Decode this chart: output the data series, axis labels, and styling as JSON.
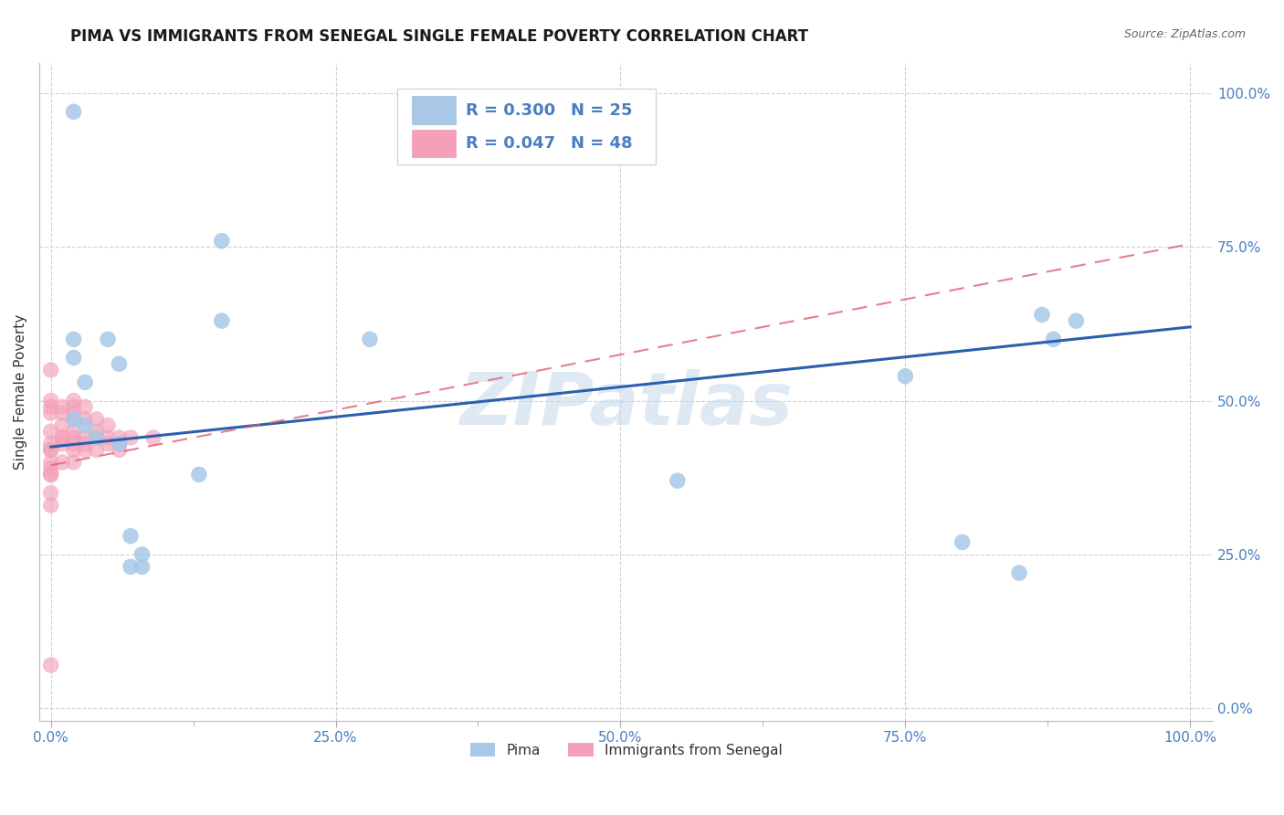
{
  "title": "PIMA VS IMMIGRANTS FROM SENEGAL SINGLE FEMALE POVERTY CORRELATION CHART",
  "source": "Source: ZipAtlas.com",
  "ylabel_label": "Single Female Poverty",
  "x_tick_labels": [
    "0.0%",
    "",
    "25.0%",
    "",
    "50.0%",
    "",
    "75.0%",
    "",
    "100.0%"
  ],
  "y_tick_labels_right": [
    "0.0%",
    "25.0%",
    "50.0%",
    "75.0%",
    "100.0%"
  ],
  "x_ticks": [
    0,
    0.125,
    0.25,
    0.375,
    0.5,
    0.625,
    0.75,
    0.875,
    1.0
  ],
  "y_ticks": [
    0,
    0.25,
    0.5,
    0.75,
    1.0
  ],
  "xlim": [
    -0.01,
    1.02
  ],
  "ylim": [
    -0.02,
    1.05
  ],
  "pima_color": "#a8c8e8",
  "senegal_color": "#f4a0b8",
  "pima_line_color": "#2a5faf",
  "senegal_line_color": "#e06070",
  "background_color": "#ffffff",
  "grid_color": "#cccccc",
  "watermark": "ZIPatlas",
  "title_fontsize": 12,
  "label_fontsize": 11,
  "tick_fontsize": 11,
  "legend_text_color": "#4a7fc1",
  "pima_scatter_x": [
    0.02,
    0.02,
    0.02,
    0.02,
    0.03,
    0.03,
    0.04,
    0.05,
    0.06,
    0.06,
    0.07,
    0.07,
    0.08,
    0.08,
    0.13,
    0.15,
    0.15,
    0.28,
    0.55,
    0.75,
    0.8,
    0.85,
    0.87,
    0.88,
    0.9
  ],
  "pima_scatter_y": [
    0.97,
    0.6,
    0.57,
    0.47,
    0.53,
    0.46,
    0.44,
    0.6,
    0.56,
    0.43,
    0.28,
    0.23,
    0.25,
    0.23,
    0.38,
    0.76,
    0.63,
    0.6,
    0.37,
    0.54,
    0.27,
    0.22,
    0.64,
    0.6,
    0.63
  ],
  "senegal_scatter_x": [
    0.0,
    0.0,
    0.0,
    0.0,
    0.0,
    0.0,
    0.0,
    0.0,
    0.0,
    0.0,
    0.0,
    0.0,
    0.0,
    0.0,
    0.0,
    0.01,
    0.01,
    0.01,
    0.01,
    0.01,
    0.01,
    0.01,
    0.02,
    0.02,
    0.02,
    0.02,
    0.02,
    0.02,
    0.02,
    0.02,
    0.02,
    0.03,
    0.03,
    0.03,
    0.03,
    0.03,
    0.04,
    0.04,
    0.04,
    0.04,
    0.05,
    0.05,
    0.05,
    0.06,
    0.06,
    0.06,
    0.07,
    0.09
  ],
  "senegal_scatter_y": [
    0.55,
    0.5,
    0.49,
    0.48,
    0.45,
    0.43,
    0.42,
    0.42,
    0.4,
    0.39,
    0.38,
    0.38,
    0.35,
    0.33,
    0.07,
    0.49,
    0.48,
    0.46,
    0.44,
    0.44,
    0.43,
    0.4,
    0.5,
    0.49,
    0.48,
    0.47,
    0.45,
    0.44,
    0.43,
    0.42,
    0.4,
    0.49,
    0.47,
    0.44,
    0.43,
    0.42,
    0.47,
    0.45,
    0.44,
    0.42,
    0.46,
    0.44,
    0.43,
    0.44,
    0.43,
    0.42,
    0.44,
    0.44
  ],
  "pima_trend_x": [
    0.0,
    1.0
  ],
  "pima_trend_y": [
    0.425,
    0.62
  ],
  "senegal_trend_x": [
    0.0,
    1.0
  ],
  "senegal_trend_y": [
    0.395,
    0.755
  ]
}
